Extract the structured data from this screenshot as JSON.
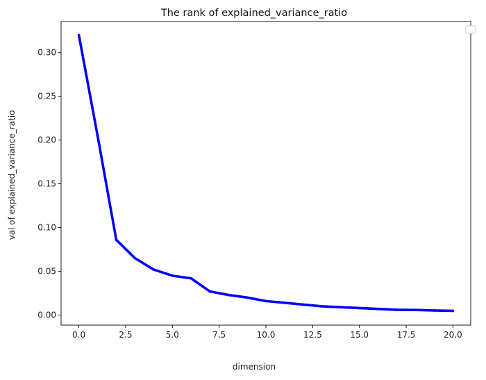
{
  "chart_data": {
    "type": "line",
    "title": "The rank of explained_variance_ratio",
    "xlabel": "dimension",
    "ylabel": "val of explained_variance_ratio",
    "xlim": [
      -0.95,
      20.95
    ],
    "ylim": [
      -0.0115,
      0.3355
    ],
    "x_ticks": [
      0.0,
      2.5,
      5.0,
      7.5,
      10.0,
      12.5,
      15.0,
      17.5,
      20.0
    ],
    "x_tick_labels": [
      "0.0",
      "2.5",
      "5.0",
      "7.5",
      "10.0",
      "12.5",
      "15.0",
      "17.5",
      "20.0"
    ],
    "y_ticks": [
      0.0,
      0.05,
      0.1,
      0.15,
      0.2,
      0.25,
      0.3
    ],
    "y_tick_labels": [
      "0.00",
      "0.05",
      "0.10",
      "0.15",
      "0.20",
      "0.25",
      "0.30"
    ],
    "grid": false,
    "legend": {
      "placement": "upper-right",
      "entries": []
    },
    "series": [
      {
        "color": "#0000ff",
        "x": [
          0,
          1,
          2,
          3,
          4,
          5,
          6,
          7,
          8,
          9,
          10,
          11,
          12,
          13,
          14,
          15,
          16,
          17,
          18,
          19,
          20
        ],
        "y": [
          0.32,
          0.205,
          0.086,
          0.065,
          0.052,
          0.045,
          0.042,
          0.027,
          0.023,
          0.02,
          0.016,
          0.014,
          0.012,
          0.01,
          0.009,
          0.008,
          0.007,
          0.006,
          0.0058,
          0.0052,
          0.0048
        ]
      }
    ]
  }
}
